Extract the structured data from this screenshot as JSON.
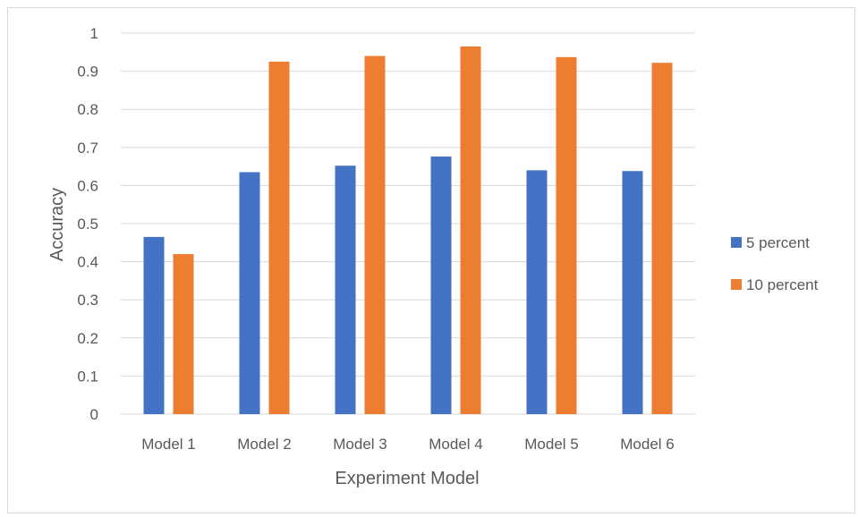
{
  "chart_data": {
    "type": "bar",
    "title": "",
    "xlabel": "Experiment Model",
    "ylabel": "Accuracy",
    "categories": [
      "Model 1",
      "Model 2",
      "Model 3",
      "Model 4",
      "Model 5",
      "Model 6"
    ],
    "series": [
      {
        "name": "5 percent",
        "color": "#4472c4",
        "values": [
          0.465,
          0.635,
          0.652,
          0.676,
          0.64,
          0.638
        ]
      },
      {
        "name": "10 percent",
        "color": "#ed7d31",
        "values": [
          0.42,
          0.925,
          0.94,
          0.965,
          0.937,
          0.922
        ]
      }
    ],
    "ylim": [
      0,
      1
    ],
    "yticks": [
      "0",
      "0.1",
      "0.2",
      "0.3",
      "0.4",
      "0.5",
      "0.6",
      "0.7",
      "0.8",
      "0.9",
      "1"
    ],
    "grid": true,
    "legend_position": "right"
  }
}
